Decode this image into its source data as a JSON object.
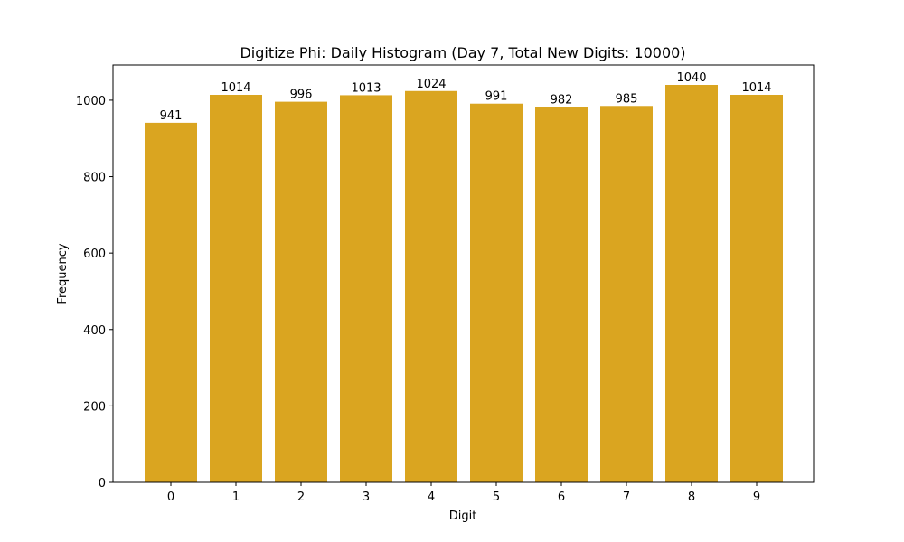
{
  "chart_data": {
    "type": "bar",
    "title": "Digitize Phi: Daily Histogram (Day 7, Total New Digits: 10000)",
    "xlabel": "Digit",
    "ylabel": "Frequency",
    "categories": [
      "0",
      "1",
      "2",
      "3",
      "4",
      "5",
      "6",
      "7",
      "8",
      "9"
    ],
    "values": [
      941,
      1014,
      996,
      1013,
      1024,
      991,
      982,
      985,
      1040,
      1014
    ],
    "ylim": [
      0,
      1092
    ],
    "yticks": [
      0,
      200,
      400,
      600,
      800,
      1000
    ],
    "bar_color": "#DAA520",
    "grid": false,
    "legend": null
  }
}
